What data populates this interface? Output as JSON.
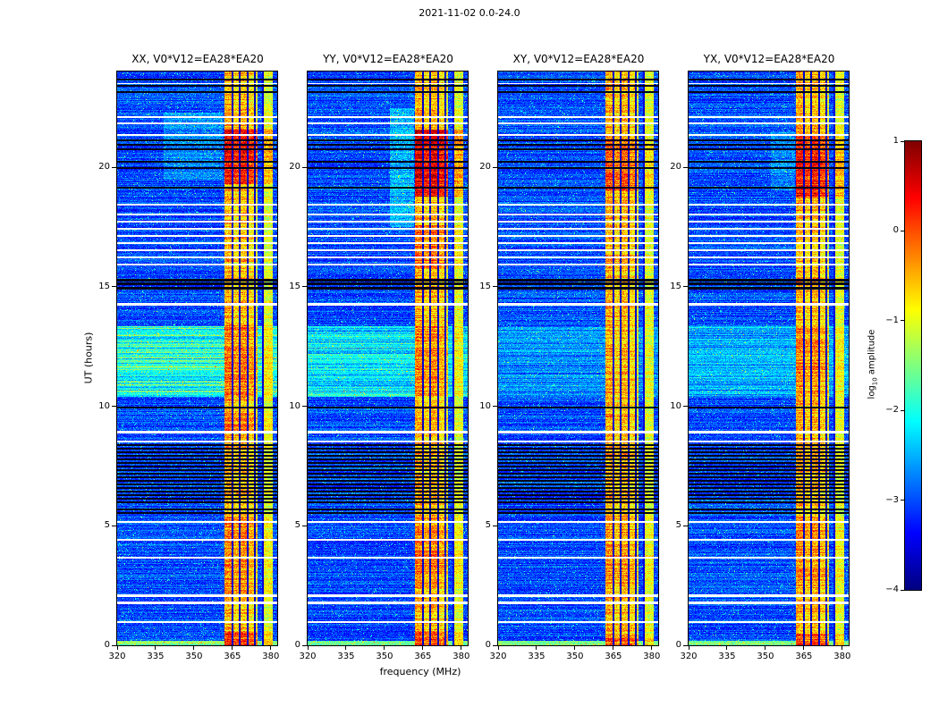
{
  "figure": {
    "suptitle": "2021-11-02 0.0-24.0",
    "xlabel": "frequency (MHz)",
    "ylabel": "UT (hours)",
    "colorbar_label": {
      "pre": "log",
      "sub": "10",
      "post": " amplitude"
    }
  },
  "chart_data": {
    "type": "heatmap",
    "description": "Four dynamic-spectrum (frequency vs UT time) cross-correlation amplitude heatmaps with jet colormap; strong RFI band near 362-374 MHz, narrow band near 377-380 MHz, horizontal white (missing) and black (flagged) time rows, elevated cyan background UT 10.4-13.4.",
    "x_range": [
      320,
      382.5
    ],
    "y_range": [
      0,
      24
    ],
    "x_tick_values": [
      320,
      335,
      350,
      365,
      380
    ],
    "x_tick_labels": [
      "320",
      "335",
      "350",
      "365",
      "380"
    ],
    "y_tick_values": [
      0,
      5,
      10,
      15,
      20
    ],
    "y_tick_labels": [
      "0",
      "5",
      "10",
      "15",
      "20"
    ],
    "colormap": "jet",
    "colorbar": {
      "label": "log10 amplitude",
      "value_range": [
        -4,
        1
      ],
      "tick_values": [
        1,
        0,
        -1,
        -2,
        -3,
        -4
      ],
      "tick_labels": [
        "1",
        "0",
        "−1",
        "−2",
        "−3",
        "−4"
      ]
    },
    "panels": [
      {
        "title": "XX, V0*V12=EA28*EA20",
        "seed": 101,
        "cyan_strength": 1.0,
        "hot_spots": [
          [
            19.3,
            21.6,
            0.85
          ],
          [
            10.4,
            13.4,
            0.3
          ],
          [
            0,
            0.6,
            0.55
          ],
          [
            2.5,
            5.4,
            0.2
          ],
          [
            8.9,
            9.7,
            0.3
          ]
        ],
        "smears": [
          [
            338,
            361,
            19.5,
            22.3,
            0.35
          ]
        ]
      },
      {
        "title": "YY, V0*V12=EA28*EA20",
        "seed": 202,
        "cyan_strength": 0.75,
        "hot_spots": [
          [
            18.8,
            21.6,
            1.0
          ],
          [
            15.8,
            17.6,
            0.35
          ],
          [
            10.4,
            13.4,
            0.2
          ],
          [
            0,
            0.6,
            0.5
          ],
          [
            2.5,
            5.4,
            0.3
          ]
        ],
        "smears": [
          [
            352,
            361.5,
            17.5,
            22.5,
            0.55
          ]
        ]
      },
      {
        "title": "XY, V0*V12=EA28*EA20",
        "seed": 303,
        "cyan_strength": 0.3,
        "hot_spots": [
          [
            19.0,
            21.2,
            0.45
          ],
          [
            0,
            0.5,
            0.4
          ],
          [
            2.5,
            5.4,
            0.15
          ]
        ],
        "smears": []
      },
      {
        "title": "YX, V0*V12=EA28*EA20",
        "seed": 404,
        "cyan_strength": 0.45,
        "hot_spots": [
          [
            18.8,
            21.4,
            0.8
          ],
          [
            10.4,
            13.4,
            0.2
          ],
          [
            0,
            0.5,
            0.5
          ],
          [
            2.5,
            5.4,
            0.2
          ]
        ],
        "smears": [
          [
            352,
            361.5,
            19.0,
            21.5,
            0.3
          ]
        ]
      }
    ],
    "features": {
      "band": {
        "f0": 361.8,
        "f1": 374.6,
        "level": -1.3,
        "dark_lines": [
          364.75,
          367.75,
          370.75,
          373.55
        ],
        "col_boosts": [
          [
            361.8,
            364.6,
            0.3
          ],
          [
            364.9,
            367.6,
            0.1
          ],
          [
            367.9,
            370.6,
            0.25
          ],
          [
            370.9,
            373.5,
            0.05
          ],
          [
            373.5,
            374.6,
            -0.15
          ]
        ]
      },
      "edge_band": {
        "f0": 377.2,
        "f1": 380.7,
        "level": -1.45,
        "dark_line": 376.65
      },
      "cyan_band": {
        "t0": 10.4,
        "t1": 13.35
      },
      "bottom_band": {
        "t0": 0.0,
        "t1": 0.22,
        "boost": 1.5
      },
      "white_rows": [
        [
          23.45,
          0.05
        ],
        [
          22.05,
          0.09
        ],
        [
          21.8,
          0.08
        ],
        [
          21.32,
          0.06
        ],
        [
          18.42,
          0.06
        ],
        [
          18.0,
          0.07
        ],
        [
          17.7,
          0.07
        ],
        [
          17.4,
          0.07
        ],
        [
          17.1,
          0.07
        ],
        [
          16.8,
          0.07
        ],
        [
          16.5,
          0.07
        ],
        [
          16.2,
          0.07
        ],
        [
          15.9,
          0.07
        ],
        [
          14.2,
          0.13
        ],
        [
          8.85,
          0.13
        ],
        [
          8.5,
          0.07
        ],
        [
          5.1,
          0.08
        ],
        [
          4.37,
          0.08
        ],
        [
          3.63,
          0.08
        ],
        [
          2.02,
          0.1
        ],
        [
          1.72,
          0.1
        ],
        [
          0.95,
          0.07
        ]
      ],
      "black_rows": [
        [
          23.65,
          0.06
        ],
        [
          23.35,
          0.08
        ],
        [
          23.1,
          0.06
        ],
        [
          21.1,
          0.07
        ],
        [
          20.9,
          0.07
        ],
        [
          20.7,
          0.07
        ],
        [
          20.2,
          0.06
        ],
        [
          19.95,
          0.06
        ],
        [
          19.1,
          0.06
        ],
        [
          15.22,
          0.12
        ],
        [
          15.05,
          0.12
        ],
        [
          14.88,
          0.1
        ],
        [
          9.9,
          0.07
        ],
        [
          8.35,
          0.07
        ],
        [
          8.2,
          0.07
        ],
        [
          8.05,
          0.07
        ],
        [
          7.9,
          0.07
        ],
        [
          7.75,
          0.07
        ],
        [
          7.6,
          0.07
        ],
        [
          7.45,
          0.07
        ],
        [
          7.3,
          0.07
        ],
        [
          7.15,
          0.07
        ],
        [
          7.0,
          0.07
        ],
        [
          6.85,
          0.07
        ],
        [
          6.7,
          0.07
        ],
        [
          6.55,
          0.07
        ],
        [
          6.4,
          0.07
        ],
        [
          6.25,
          0.07
        ],
        [
          6.1,
          0.07
        ],
        [
          5.95,
          0.07
        ],
        [
          5.65,
          0.07
        ],
        [
          5.5,
          0.07
        ]
      ]
    }
  }
}
